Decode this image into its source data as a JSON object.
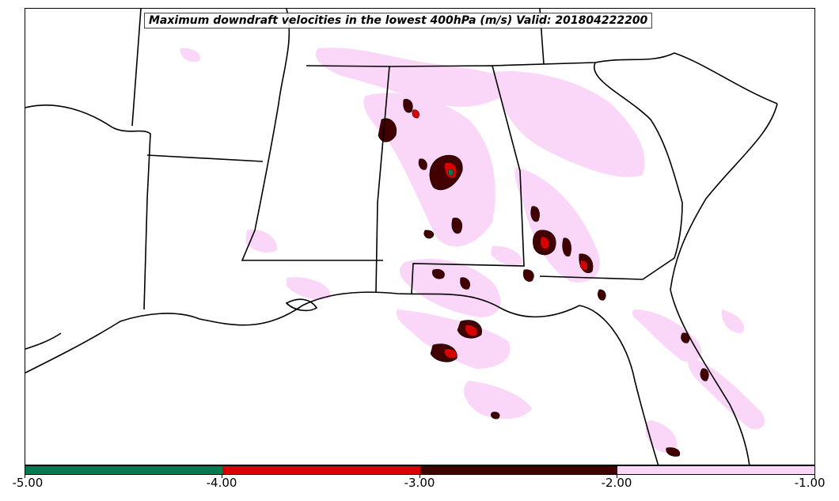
{
  "title": "Maximum downdraft velocities in the lowest 400hPa (m/s) Valid: 201804222200",
  "colorbar": {
    "ticks": [
      "-5.00",
      "-4.00",
      "-3.00",
      "-2.00",
      "-1.00"
    ],
    "bins": [
      {
        "range": [
          -5.0,
          -4.0
        ],
        "color": "#047a50"
      },
      {
        "range": [
          -4.0,
          -3.0
        ],
        "color": "#d90000"
      },
      {
        "range": [
          -3.0,
          -2.0
        ],
        "color": "#420000"
      },
      {
        "range": [
          -2.0,
          -1.0
        ],
        "color": "#fad6f8"
      }
    ]
  },
  "colors": {
    "land": "#ffffff",
    "borders": "#000000",
    "weak": "#fad6f8",
    "moderate": "#420000",
    "strong": "#d90000",
    "extreme": "#047a50"
  }
}
